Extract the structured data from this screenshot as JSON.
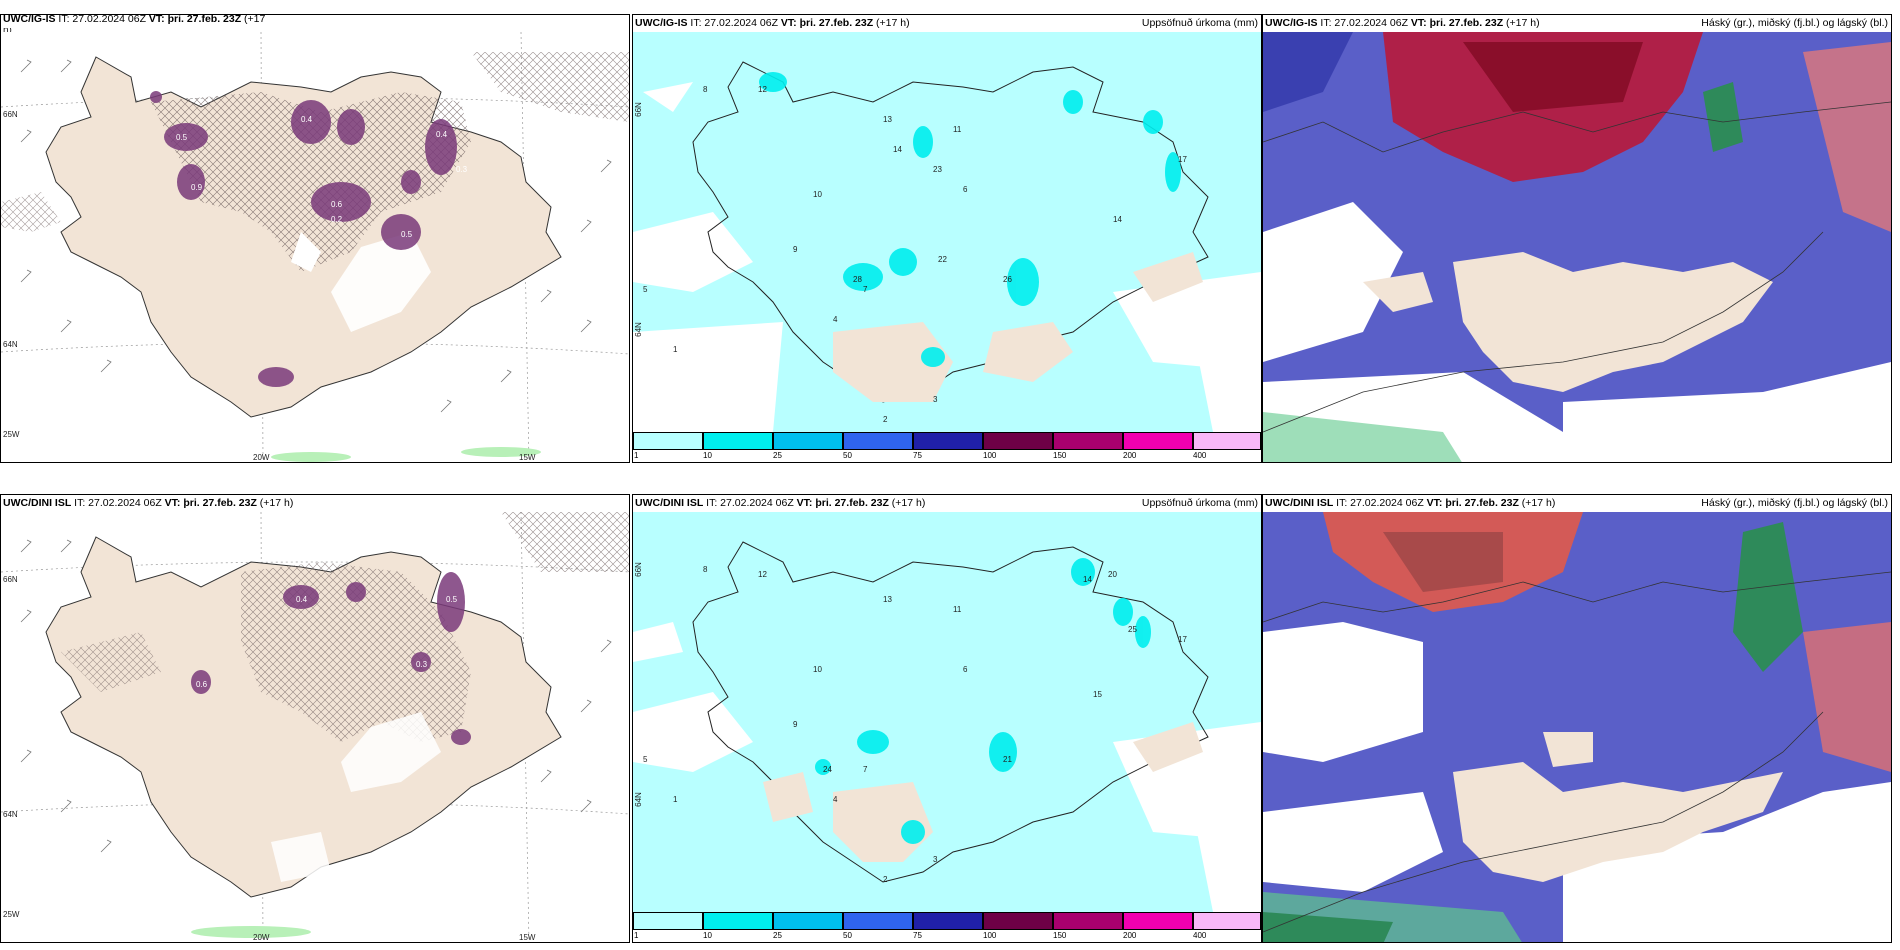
{
  "panels": [
    {
      "model": "UWC/IG-IS",
      "it": "IT: 27.02.2024 06Z",
      "vt_label": "VT:",
      "vt": "þri. 27.feb. 23Z",
      "lead": "(+17",
      "lead2": "h)",
      "right": "",
      "lat1": "66N",
      "lat2": "64N",
      "lon1": "20W",
      "lon2": "15W",
      "lon3": "25W"
    },
    {
      "model": "UWC/IG-IS",
      "it": "IT: 27.02.2024 06Z",
      "vt_label": "VT:",
      "vt": "þri. 27.feb. 23Z",
      "lead": "(+17 h)",
      "right": "Uppsöfnuð úrkoma (mm)",
      "lat1": "66N",
      "lat2": "64N"
    },
    {
      "model": "UWC/IG-IS",
      "it": "IT: 27.02.2024 06Z",
      "vt_label": "VT:",
      "vt": "þri. 27.feb. 23Z",
      "lead": "(+17 h)",
      "right": "Háský (gr.), miðský (fj.bl.) og lágský (bl.)"
    },
    {
      "model": "UWC/DINI ISL",
      "it": "IT: 27.02.2024 06Z",
      "vt_label": "VT:",
      "vt": "þri. 27.feb. 23Z",
      "lead": "(+17 h)",
      "right": "",
      "lat1": "66N",
      "lat2": "64N",
      "lon1": "20W",
      "lon2": "15W",
      "lon3": "25W"
    },
    {
      "model": "UWC/DINI ISL",
      "it": "IT: 27.02.2024 06Z",
      "vt_label": "VT:",
      "vt": "þri. 27.feb. 23Z",
      "lead": "(+17 h)",
      "right": "Uppsöfnuð úrkoma (mm)",
      "lat1": "66N",
      "lat2": "64N"
    },
    {
      "model": "UWC/DINI ISL",
      "it": "IT: 27.02.2024 06Z",
      "vt_label": "VT:",
      "vt": "þri. 27.feb. 23Z",
      "lead": "(+17 h)",
      "right": "Háský (gr.), miðský (fj.bl.) og lágský (bl.)"
    }
  ],
  "colorbar": {
    "ticks": [
      "1",
      "10",
      "25",
      "50",
      "75",
      "100",
      "150",
      "200",
      "400"
    ],
    "colors": [
      "#b8ffff",
      "#00eeee",
      "#00bfee",
      "#2f64ee",
      "#2020a8",
      "#6e0046",
      "#a8006e",
      "#f000b0",
      "#f8b8f8"
    ]
  },
  "colors": {
    "land": "#f2e4d6",
    "sea_precip": "#b8ffff",
    "precip_mid": "#00eeee",
    "snow_purple": "#7a3a7a",
    "cloud_low": "#5a5fc8",
    "cloud_mid_red": "#b81a3a",
    "cloud_green": "#5ec88a"
  },
  "precip_labels_top": [
    "12",
    "13",
    "14",
    "11",
    "10",
    "9",
    "8",
    "7",
    "6",
    "5",
    "4",
    "3",
    "2",
    "1",
    "22",
    "23",
    "26",
    "28",
    "17",
    "14"
  ],
  "precip_labels_bottom": [
    "12",
    "13",
    "14",
    "11",
    "10",
    "9",
    "8",
    "7",
    "6",
    "5",
    "4",
    "3",
    "2",
    "1",
    "20",
    "21",
    "24",
    "25",
    "17",
    "15"
  ],
  "snow_labels_top": [
    "0.5",
    "0.4",
    "0.3",
    "0.6",
    "0.2",
    "0.9",
    "0.1",
    "0.3",
    "0.4",
    "0.5"
  ],
  "snow_labels_bottom": [
    "0.4",
    "0.5",
    "0.3",
    "0.2",
    "0.4",
    "0.6",
    "0.5",
    "0.4"
  ]
}
